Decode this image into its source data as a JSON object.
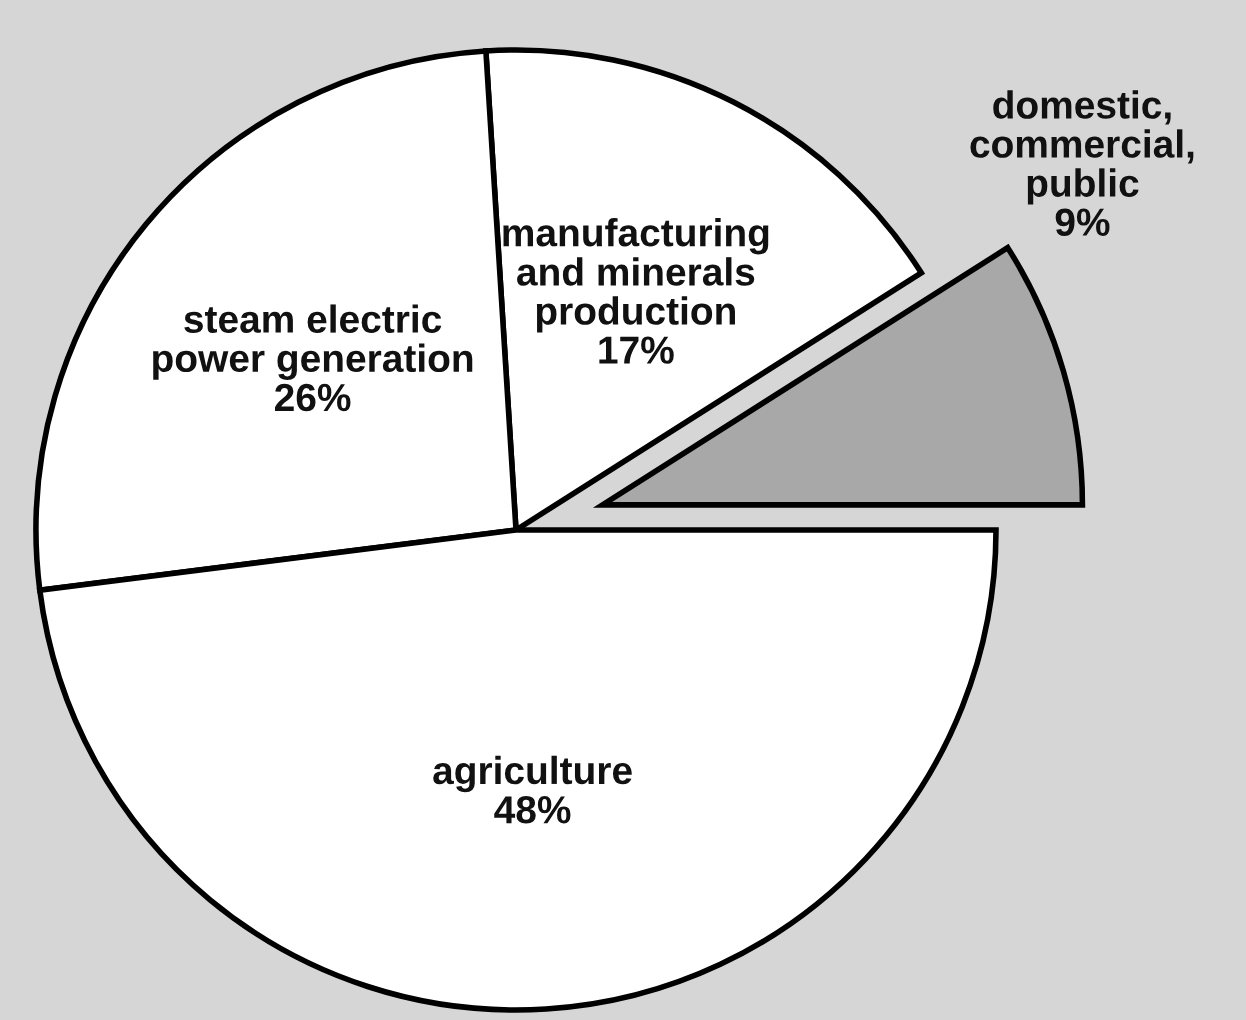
{
  "chart_data": {
    "type": "pie",
    "categories": [
      "domestic,\ncommercial,\npublic",
      "manufacturing\nand minerals\nproduction",
      "steam electric\npower generation",
      "agriculture"
    ],
    "values": [
      9,
      17,
      26,
      48
    ],
    "value_labels": [
      "9%",
      "17%",
      "26%",
      "48%"
    ],
    "colors": [
      "#a8a8a8",
      "#ffffff",
      "#ffffff",
      "#ffffff"
    ]
  }
}
